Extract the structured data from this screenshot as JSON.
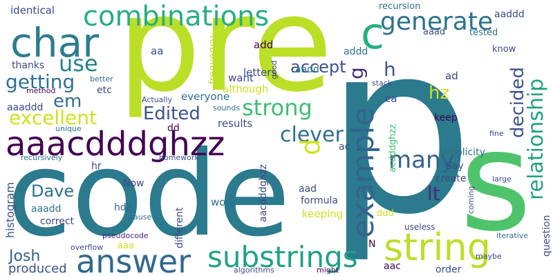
{
  "wordcloud": {
    "words": [
      {
        "text": "p",
        "color": "#2b7a8d"
      },
      {
        "text": "pre",
        "color": "#bbdf27"
      },
      {
        "text": "code",
        "color": "#2b7a8d"
      },
      {
        "text": "s",
        "color": "#4ec36b"
      },
      {
        "text": "char",
        "color": "#2c7d8e"
      },
      {
        "text": "aaacdddghzz",
        "color": "#440154"
      },
      {
        "text": "c",
        "color": "#28ae80"
      },
      {
        "text": "example",
        "color": "#33638d"
      },
      {
        "text": "string",
        "color": "#bbdf27"
      },
      {
        "text": "answer",
        "color": "#30698e"
      },
      {
        "text": "substrings",
        "color": "#1fa187"
      },
      {
        "text": "combinations",
        "color": "#28ae80"
      },
      {
        "text": "generate",
        "color": "#2c728e"
      },
      {
        "text": "relationship",
        "color": "#1fa187"
      },
      {
        "text": "strong",
        "color": "#3fbc73"
      },
      {
        "text": "many",
        "color": "#33638d"
      },
      {
        "text": "clever",
        "color": "#2d708e"
      },
      {
        "text": "excellent",
        "color": "#d0e11c"
      },
      {
        "text": "getting",
        "color": "#2c728e"
      },
      {
        "text": "use",
        "color": "#26828e"
      },
      {
        "text": "em",
        "color": "#2d708e"
      },
      {
        "text": "Edited",
        "color": "#3b528b"
      },
      {
        "text": "hz",
        "color": "#d0e11c"
      },
      {
        "text": "decided",
        "color": "#3b528b"
      },
      {
        "text": "lt",
        "color": "#482878"
      },
      {
        "text": "Dave",
        "color": "#2c728e"
      },
      {
        "text": "Josh",
        "color": "#33638d"
      },
      {
        "text": "h",
        "color": "#3b528b"
      },
      {
        "text": "d",
        "color": "#d0e11c"
      },
      {
        "text": "g",
        "color": "#482878"
      },
      {
        "text": "accept",
        "color": "#3b528b"
      },
      {
        "text": "produced",
        "color": "#3b528b"
      },
      {
        "text": "histogram",
        "color": "#3b528b"
      },
      {
        "text": "identical",
        "color": "#3e4989"
      },
      {
        "text": "want",
        "color": "#3e4989"
      },
      {
        "text": "add",
        "color": "#440154"
      },
      {
        "text": "letters",
        "color": "#3e4989"
      },
      {
        "text": "although",
        "color": "#d0e11c"
      },
      {
        "text": "everyone",
        "color": "#2d708e"
      },
      {
        "text": "results",
        "color": "#3e4989"
      },
      {
        "text": "frequency",
        "color": "#bbdf27"
      },
      {
        "text": "aa",
        "color": "#3e4989"
      },
      {
        "text": "thanks",
        "color": "#3e4989"
      },
      {
        "text": "better",
        "color": "#2c728e"
      },
      {
        "text": "etc",
        "color": "#3e4989"
      },
      {
        "text": "method",
        "color": "#440154"
      },
      {
        "text": "aaaddd",
        "color": "#3e4989"
      },
      {
        "text": "unique",
        "color": "#2c728e"
      },
      {
        "text": "recursively",
        "color": "#2c728e"
      },
      {
        "text": "dd",
        "color": "#440154"
      },
      {
        "text": "hr",
        "color": "#3e4989"
      },
      {
        "text": "aaadd",
        "color": "#2c728e"
      },
      {
        "text": "Now",
        "color": "#3e4989"
      },
      {
        "text": "hdz",
        "color": "#30698e"
      },
      {
        "text": "correct",
        "color": "#3e4989"
      },
      {
        "text": "pseudocode",
        "color": "#482878"
      },
      {
        "text": "aaa",
        "color": "#d0e11c"
      },
      {
        "text": "cause",
        "color": "#2c728e"
      },
      {
        "text": "different",
        "color": "#3e4989"
      },
      {
        "text": "work",
        "color": "#2c728e"
      },
      {
        "text": "Actually",
        "color": "#3e4989"
      },
      {
        "text": "sounds",
        "color": "#2c728e"
      },
      {
        "text": "homework",
        "color": "#3b528b"
      },
      {
        "text": "aacdddghzz",
        "color": "#3e4989"
      },
      {
        "text": "recursion",
        "color": "#2c728e"
      },
      {
        "text": "aaddd",
        "color": "#3e4989"
      },
      {
        "text": "aaad",
        "color": "#3e4989"
      },
      {
        "text": "tested",
        "color": "#2c728e"
      },
      {
        "text": "know",
        "color": "#3e4989"
      },
      {
        "text": "addd",
        "color": "#2c728e"
      },
      {
        "text": "aadd",
        "color": "#2c728e"
      },
      {
        "text": "good",
        "color": "#3e4989"
      },
      {
        "text": "stack",
        "color": "#3e4989"
      },
      {
        "text": "ad",
        "color": "#3e4989"
      },
      {
        "text": "ca",
        "color": "#3e4989"
      },
      {
        "text": "keep",
        "color": "#440154"
      },
      {
        "text": "acdddghzz",
        "color": "#3fbc73"
      },
      {
        "text": "ac",
        "color": "#3e4989"
      },
      {
        "text": "simplicity",
        "color": "#2c728e"
      },
      {
        "text": "Say",
        "color": "#3e4989"
      },
      {
        "text": "create",
        "color": "#3e4989"
      },
      {
        "text": "aad",
        "color": "#3e4989"
      },
      {
        "text": "formula",
        "color": "#3e4989"
      },
      {
        "text": "keeping",
        "color": "#d0e11c"
      },
      {
        "text": "ddd",
        "color": "#d0e11c"
      },
      {
        "text": "useless",
        "color": "#3e4989"
      },
      {
        "text": "fine",
        "color": "#3e4989"
      },
      {
        "text": "large",
        "color": "#3e4989"
      },
      {
        "text": "coming",
        "color": "#3e4989"
      },
      {
        "text": "question",
        "color": "#3e4989"
      },
      {
        "text": "iterative",
        "color": "#2c728e"
      },
      {
        "text": "maybe",
        "color": "#3e4989"
      },
      {
        "text": "overflow",
        "color": "#3e4989"
      },
      {
        "text": "algorithms",
        "color": "#3e4989"
      },
      {
        "text": "might",
        "color": "#440154"
      },
      {
        "text": "aac",
        "color": "#440154"
      },
      {
        "text": "order",
        "color": "#3e4989"
      },
      {
        "text": "N",
        "color": "#440154"
      }
    ]
  }
}
